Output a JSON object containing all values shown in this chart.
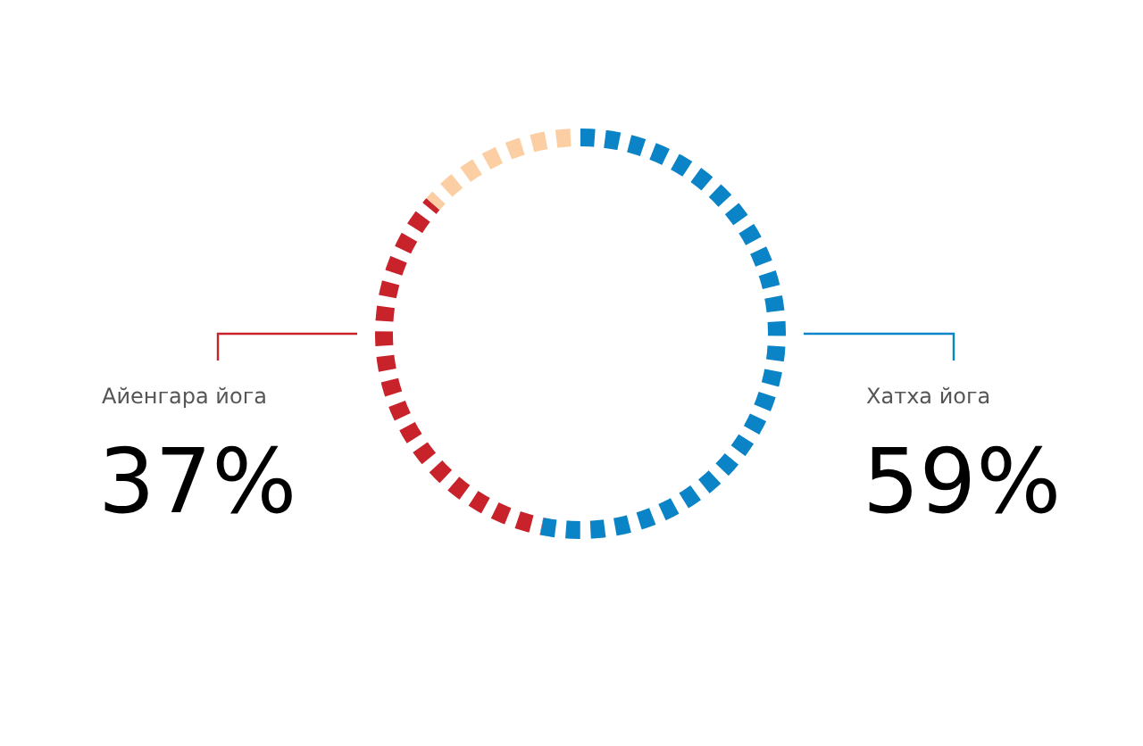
{
  "chart_data": {
    "type": "donut",
    "categories": [
      "Хатха йога",
      "Айенгара йога",
      null
    ],
    "values": [
      59,
      37,
      15
    ],
    "colors": [
      "#0a84c6",
      "#c8232b",
      "#fbcfa3"
    ],
    "value_labels": [
      "59%",
      "37%",
      null
    ]
  }
}
